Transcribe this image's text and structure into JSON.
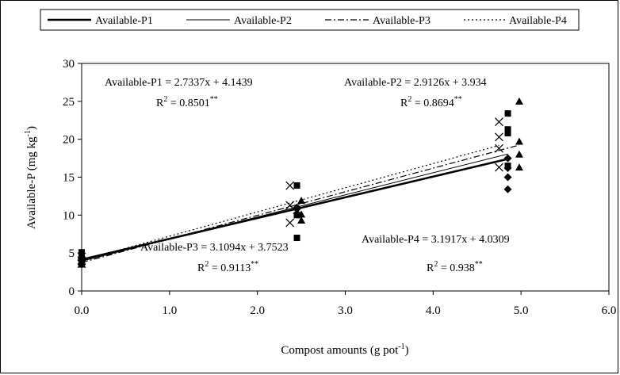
{
  "chart_data": {
    "type": "scatter",
    "xlabel": "Compost amounts (g pot",
    "xlabel_sup": "-1",
    "xlabel_end": ")",
    "ylabel": "Available-P (mg kg",
    "ylabel_sup": "-1",
    "ylabel_end": ")",
    "xlim": [
      0,
      6
    ],
    "ylim": [
      0,
      30
    ],
    "x_ticks": [
      "0.0",
      "1.0",
      "2.0",
      "3.0",
      "4.0",
      "5.0",
      "6.0"
    ],
    "y_ticks": [
      "0",
      "5",
      "10",
      "15",
      "20",
      "25",
      "30"
    ],
    "grid": false,
    "legend_position": "top",
    "series": [
      {
        "name": "Available-P1",
        "line_style": "solid-thick",
        "marker": "diamond",
        "slope": 2.7337,
        "intercept": 4.1439,
        "points": [
          [
            0,
            3.5
          ],
          [
            0,
            4.0
          ],
          [
            0,
            4.3
          ],
          [
            2.45,
            10.2
          ],
          [
            2.45,
            10.8
          ],
          [
            2.45,
            11.0
          ],
          [
            4.85,
            13.4
          ],
          [
            4.85,
            15.0
          ],
          [
            4.85,
            16.2
          ],
          [
            4.85,
            17.5
          ]
        ]
      },
      {
        "name": "Available-P2",
        "line_style": "solid-thin",
        "marker": "square",
        "slope": 2.9126,
        "intercept": 3.934,
        "points": [
          [
            0,
            3.5
          ],
          [
            0,
            4.3
          ],
          [
            0,
            5.1
          ],
          [
            2.45,
            7.0
          ],
          [
            2.45,
            10.0
          ],
          [
            2.45,
            13.9
          ],
          [
            4.85,
            16.5
          ],
          [
            4.85,
            20.8
          ],
          [
            4.85,
            21.3
          ],
          [
            4.85,
            23.4
          ]
        ]
      },
      {
        "name": "Available-P3",
        "line_style": "dash-dot",
        "marker": "triangle",
        "slope": 3.1094,
        "intercept": 3.7523,
        "points": [
          [
            0,
            3.8
          ],
          [
            0,
            4.0
          ],
          [
            0,
            4.6
          ],
          [
            2.5,
            9.3
          ],
          [
            2.5,
            10.1
          ],
          [
            2.5,
            11.9
          ],
          [
            4.98,
            16.3
          ],
          [
            4.98,
            18.0
          ],
          [
            4.98,
            19.7
          ],
          [
            4.98,
            25.0
          ]
        ]
      },
      {
        "name": "Available-P4",
        "line_style": "dotted",
        "marker": "x",
        "slope": 3.1917,
        "intercept": 4.0309,
        "points": [
          [
            0,
            3.6
          ],
          [
            0,
            4.0
          ],
          [
            0,
            4.5
          ],
          [
            2.37,
            9.0
          ],
          [
            2.37,
            11.3
          ],
          [
            2.37,
            13.9
          ],
          [
            4.75,
            16.3
          ],
          [
            4.75,
            18.8
          ],
          [
            4.75,
            20.3
          ],
          [
            4.75,
            22.3
          ]
        ]
      }
    ],
    "annotations": [
      {
        "eq": "Available-P1 = 2.7337x + 4.1439",
        "r2": "0.8501",
        "sig": "**"
      },
      {
        "eq": "Available-P2 = 2.9126x + 3.934",
        "r2": "0.8694",
        "sig": "**"
      },
      {
        "eq": "Available-P3 = 3.1094x + 3.7523",
        "r2": "0.9113",
        "sig": "**"
      },
      {
        "eq": "Available-P4 = 3.1917x + 4.0309",
        "r2": "0.938",
        "sig": "**"
      }
    ],
    "r2_label": "R",
    "r2_exp": "2",
    "r2_eq": " = "
  }
}
